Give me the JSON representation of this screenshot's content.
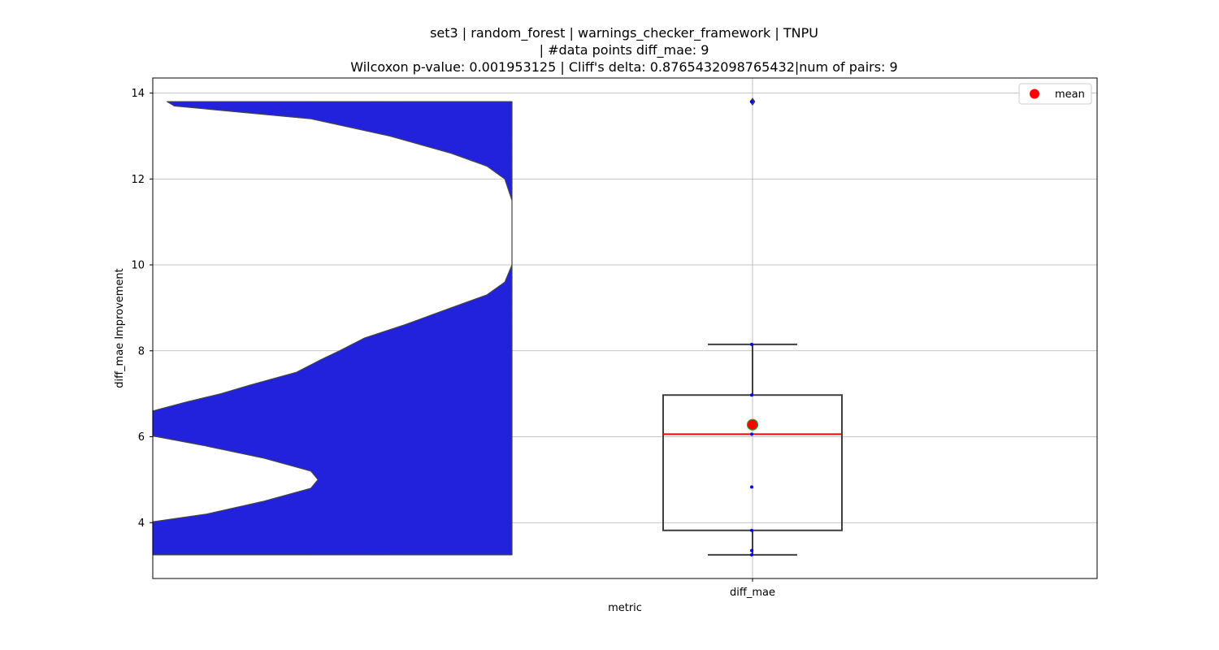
{
  "chart_data": {
    "type": "violin-box",
    "title_lines": [
      "set3 | random_forest | warnings_checker_framework | TNPU",
      "| #data points diff_mae: 9",
      "Wilcoxon p-value: 0.001953125 | Cliff's delta: 0.8765432098765432|num of pairs: 9"
    ],
    "xlabel": "metric",
    "ylabel": "diff_mae Improvement",
    "categories": [
      "diff_mae"
    ],
    "ylim": [
      2.7,
      14.35
    ],
    "yticks": [
      4,
      6,
      8,
      10,
      12,
      14
    ],
    "grid": true,
    "legend": {
      "position": "top-right",
      "entries": [
        "mean"
      ]
    },
    "violin": {
      "color": "#2222dd",
      "range": [
        3.25,
        13.8
      ],
      "density_profile": [
        [
          3.25,
          1.0
        ],
        [
          4.02,
          1.0
        ],
        [
          4.2,
          0.85
        ],
        [
          4.5,
          0.69
        ],
        [
          4.8,
          0.56
        ],
        [
          5.0,
          0.54
        ],
        [
          5.2,
          0.56
        ],
        [
          5.5,
          0.69
        ],
        [
          5.8,
          0.86
        ],
        [
          6.02,
          1.0
        ],
        [
          6.5,
          1.0
        ],
        [
          6.6,
          1.0
        ],
        [
          6.8,
          0.91
        ],
        [
          7.0,
          0.81
        ],
        [
          7.2,
          0.73
        ],
        [
          7.5,
          0.6
        ],
        [
          7.8,
          0.53
        ],
        [
          8.0,
          0.48
        ],
        [
          8.3,
          0.41
        ],
        [
          8.6,
          0.3
        ],
        [
          9.0,
          0.17
        ],
        [
          9.3,
          0.07
        ],
        [
          9.6,
          0.02
        ],
        [
          10.0,
          0.0
        ],
        [
          10.5,
          0.0
        ],
        [
          11.0,
          0.0
        ],
        [
          11.5,
          0.0
        ],
        [
          12.0,
          0.02
        ],
        [
          12.3,
          0.07
        ],
        [
          12.6,
          0.17
        ],
        [
          13.0,
          0.34
        ],
        [
          13.4,
          0.56
        ],
        [
          13.7,
          0.94
        ],
        [
          13.8,
          0.96
        ]
      ]
    },
    "box": {
      "q1": 3.82,
      "median": 6.06,
      "q3": 6.97,
      "whisker_low": 3.25,
      "whisker_high": 8.15,
      "outliers": [
        13.8
      ],
      "mean": 6.28,
      "points": [
        3.25,
        3.35,
        3.82,
        4.83,
        6.06,
        6.2,
        6.97,
        8.15,
        13.8
      ]
    },
    "colors": {
      "violin_fill": "#2222dd",
      "median": "#ff0000",
      "mean_marker": "#ff0000",
      "mean_edge": "#2ca02c",
      "points": "#0000ff",
      "box_edge": "#3f3f3f"
    }
  }
}
